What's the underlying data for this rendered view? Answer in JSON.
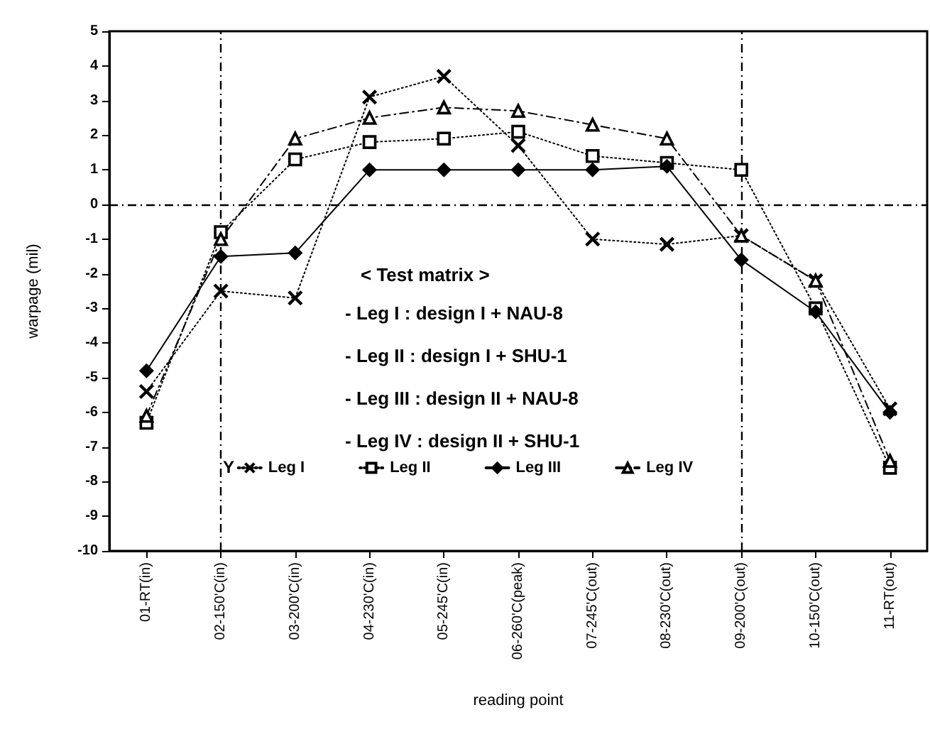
{
  "chart_data": {
    "type": "line",
    "xlabel": "reading point",
    "ylabel": "warpage (mil)",
    "categories": [
      "01-RT(in)",
      "02-150'C(in)",
      "03-200'C(in)",
      "04-230'C(in)",
      "05-245'C(in)",
      "06-260'C(peak)",
      "07-245'C(out)",
      "08-230'C(out)",
      "09-200'C(out)",
      "10-150'C(out)",
      "11-RT(out)"
    ],
    "series": [
      {
        "name": "Leg I",
        "color": "#000000",
        "marker": "cross",
        "line_style": "dotted",
        "values": [
          -5.4,
          -2.5,
          -2.7,
          3.1,
          3.7,
          1.7,
          -1.0,
          -1.15,
          -0.9,
          -2.2,
          -5.9
        ]
      },
      {
        "name": "Leg II",
        "color": "#000000",
        "marker": "square",
        "line_style": "dotted",
        "values": [
          -6.3,
          -0.8,
          1.3,
          1.8,
          1.9,
          2.1,
          1.4,
          1.2,
          1.0,
          -3.0,
          -7.6
        ]
      },
      {
        "name": "Leg III",
        "color": "#000000",
        "marker": "diamond",
        "line_style": "solid",
        "values": [
          -4.8,
          -1.5,
          -1.4,
          1.0,
          1.0,
          1.0,
          1.0,
          1.1,
          -1.6,
          -3.1,
          -6.0
        ]
      },
      {
        "name": "Leg IV",
        "color": "#000000",
        "marker": "triangle",
        "line_style": "dashed",
        "values": [
          -6.1,
          -1.0,
          1.9,
          2.5,
          2.8,
          2.7,
          2.3,
          1.9,
          -0.9,
          -2.2,
          -7.4
        ]
      }
    ],
    "ylim": [
      -10,
      5
    ],
    "yticks": [
      -10,
      -9,
      -8,
      -7,
      -6,
      -5,
      -4,
      -3,
      -2,
      -1,
      0,
      1,
      2,
      3,
      4,
      5
    ],
    "grid": false,
    "legend": "bottom",
    "ref_lines": [
      {
        "axis": "y",
        "value": 0,
        "line_style": "dashed"
      },
      {
        "axis": "x",
        "value": "02-150'C(in)",
        "line_style": "dashed"
      },
      {
        "axis": "x",
        "value": "09-200'C(out)",
        "line_style": "dashed"
      }
    ],
    "annotations": [
      "< Test matrix >",
      "- Leg I : design I + NAU-8",
      "- Leg II : design I + SHU-1",
      "- Leg III : design II + NAU-8",
      "- Leg IV : design II + SHU-1",
      "Y"
    ]
  }
}
